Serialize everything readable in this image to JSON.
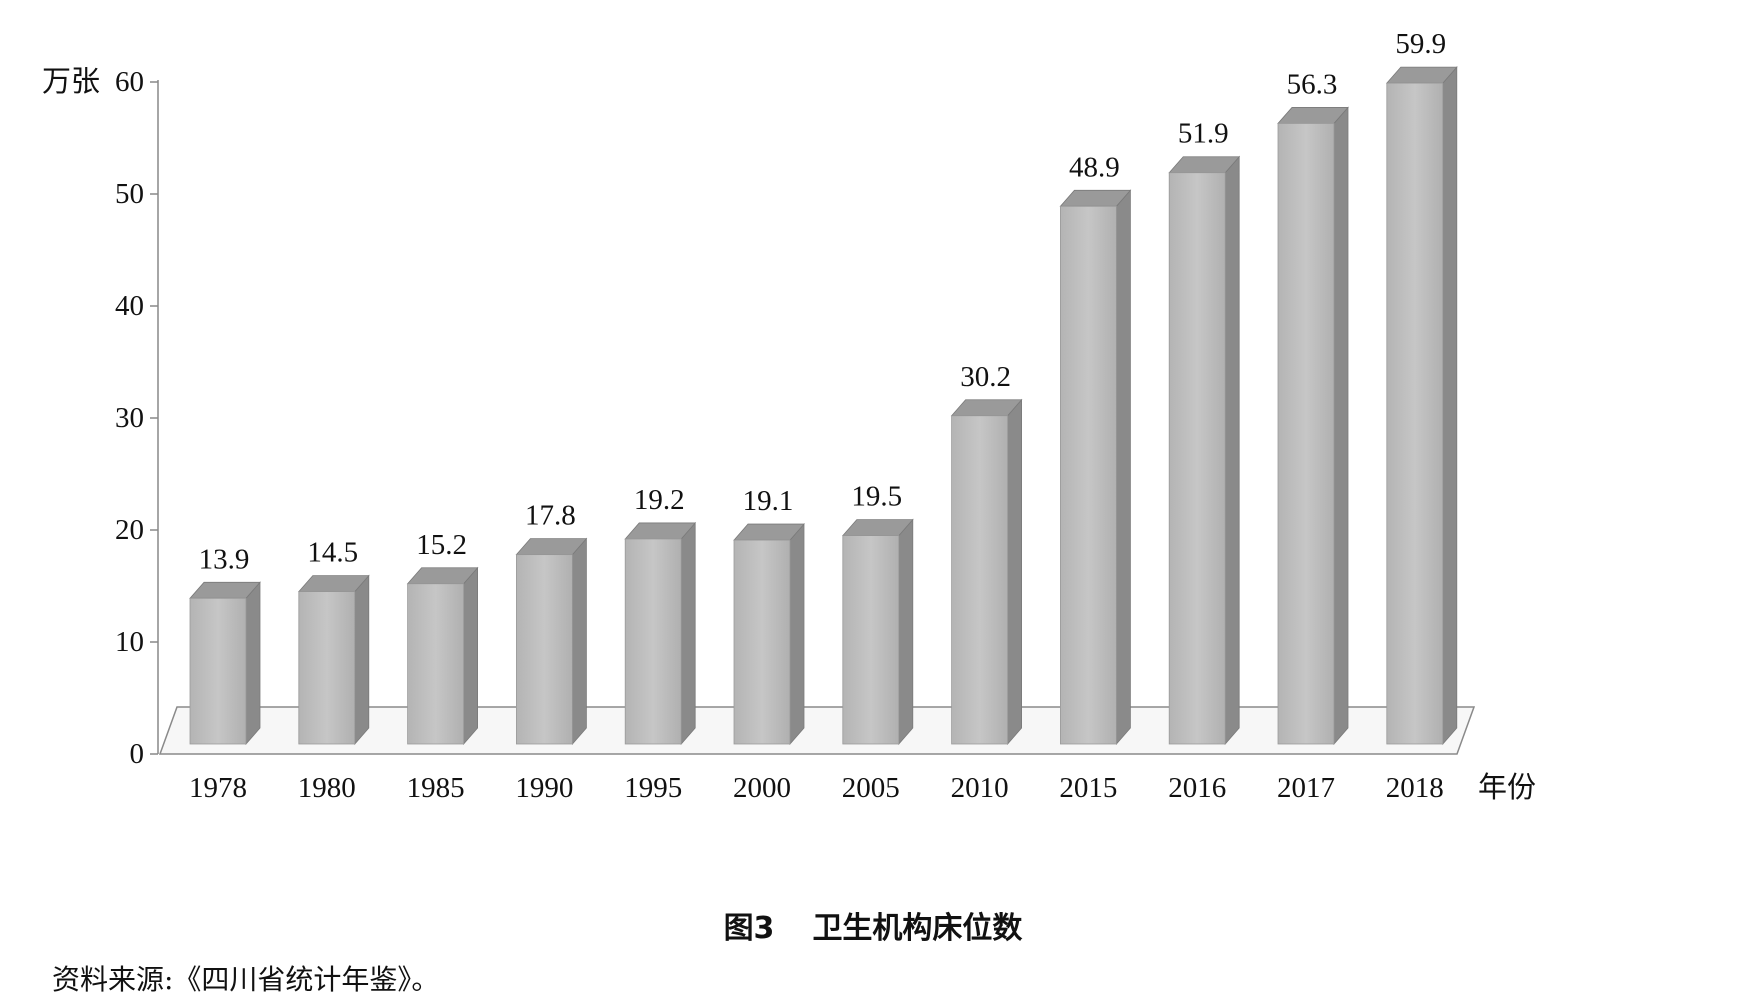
{
  "figure": {
    "caption_number": "图3",
    "caption_title": "卫生机构床位数",
    "source_note": "资料来源:《四川省统计年鉴》。"
  },
  "chart_data": {
    "type": "bar",
    "title": "",
    "xlabel": "年份",
    "ylabel": "万张",
    "ylim": [
      0,
      60
    ],
    "yticks": [
      0,
      10,
      20,
      30,
      40,
      50,
      60
    ],
    "categories": [
      "1978",
      "1980",
      "1985",
      "1990",
      "1995",
      "2000",
      "2005",
      "2010",
      "2015",
      "2016",
      "2017",
      "2018"
    ],
    "values": [
      13.9,
      14.5,
      15.2,
      17.8,
      19.2,
      19.1,
      19.5,
      30.2,
      48.9,
      51.9,
      56.3,
      59.9
    ],
    "data_labels": [
      "13.9",
      "14.5",
      "15.2",
      "17.8",
      "19.2",
      "19.1",
      "19.5",
      "30.2",
      "48.9",
      "51.9",
      "56.3",
      "59.9"
    ],
    "style": "3d",
    "grid": false,
    "legend": "none",
    "colors": {
      "bar_front": "#bcbcbc",
      "bar_top": "#9a9a9a",
      "bar_side": "#8a8a8a",
      "axis": "#888888",
      "text": "#111111"
    }
  }
}
